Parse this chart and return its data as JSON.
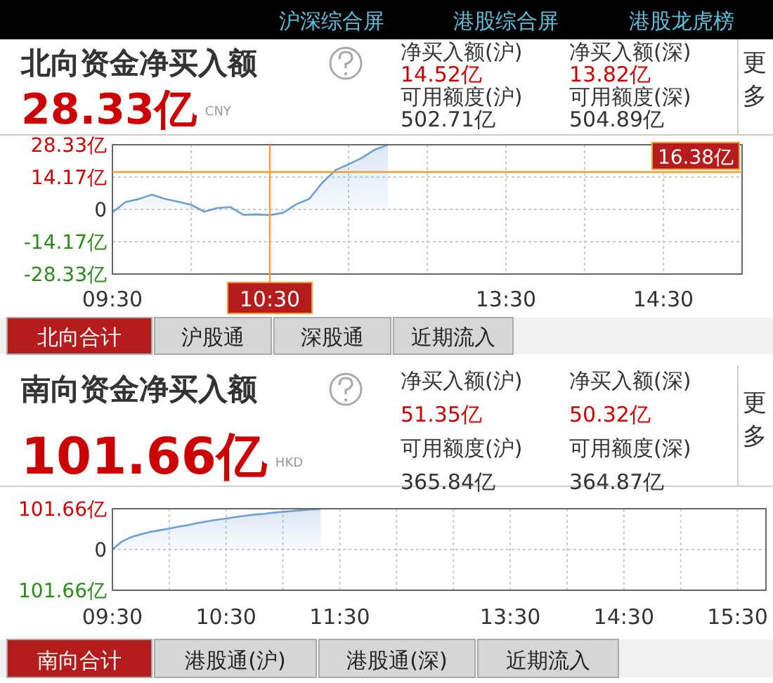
{
  "chart_data": [
    {
      "type": "area",
      "title": "北向资金净买入额",
      "subtitle": "28.33亿",
      "categories": [
        "09:30",
        null,
        null,
        null,
        null,
        null,
        null,
        null,
        null,
        null,
        null,
        null,
        "10:30",
        null,
        null,
        null,
        null,
        null,
        null,
        null,
        null,
        null,
        null,
        null,
        null,
        null,
        null,
        null,
        null,
        null,
        "13:30",
        null,
        null,
        null,
        null,
        null,
        null,
        null,
        null,
        null,
        null,
        null,
        "14:30",
        null,
        null,
        null,
        null,
        null,
        null
      ],
      "series": [
        {
          "color": "#6f9fd2",
          "values": [
            -1.3,
            3.2,
            4.5,
            6.5,
            4.6,
            3.4,
            2.0,
            -1.0,
            0.6,
            1.0,
            -2.4,
            -2.2,
            -2.5,
            -1.5,
            2.2,
            4.6,
            11.7,
            17.2,
            19.8,
            22.5,
            26.2,
            28.3,
            null,
            null,
            null,
            null,
            null,
            null,
            null,
            null,
            null,
            null,
            null,
            null,
            null,
            null,
            null,
            null,
            null,
            null,
            null,
            null,
            null,
            null,
            null,
            null,
            null,
            null,
            null
          ]
        }
      ],
      "ylim": [
        -28.33,
        28.33
      ],
      "yticks": [
        {
          "value": -28.33,
          "label": "-28.33亿"
        },
        {
          "value": -14.17,
          "label": "-14.17亿"
        },
        0,
        {
          "value": 14.17,
          "label": "14.17亿"
        },
        {
          "value": 28.33,
          "label": "28.33亿"
        }
      ],
      "grid": true,
      "ref_lines": [
        {
          "axis": "y",
          "value": 16.38,
          "label": "16.38亿",
          "color": "#f5a030"
        },
        {
          "axis": "x",
          "value": "10:30",
          "color": "#f5a030"
        }
      ],
      "annotations": [
        "沪深综合屏",
        "港股综合屏",
        "港股龙虎榜",
        "CNY",
        "净买入额(沪)",
        "14.52亿",
        "净买入额(深)",
        "13.82亿",
        "可用额度(沪)",
        "502.71亿",
        "可用额度(深)",
        "504.89亿",
        "更多",
        "北向合计",
        "沪股通",
        "深股通",
        "近期流入"
      ]
    },
    {
      "type": "area",
      "title": "南向资金净买入额",
      "subtitle": "101.66亿",
      "categories": [
        "09:30",
        null,
        null,
        null,
        null,
        null,
        null,
        null,
        null,
        null,
        null,
        null,
        "10:30",
        null,
        null,
        null,
        null,
        null,
        null,
        null,
        null,
        null,
        null,
        null,
        "11:30",
        null,
        null,
        null,
        null,
        null,
        null,
        null,
        null,
        null,
        null,
        null,
        null,
        null,
        null,
        null,
        null,
        null,
        "13:30",
        null,
        null,
        null,
        null,
        null,
        null,
        null,
        null,
        null,
        null,
        null,
        "14:30",
        null,
        null,
        null,
        null,
        null,
        null,
        null,
        null,
        null,
        null,
        null,
        "15:30",
        null,
        null,
        null
      ],
      "series": [
        {
          "color": "#6f9fd2",
          "values": [
            0,
            20,
            31,
            38,
            44,
            48,
            52,
            57,
            61,
            66,
            70,
            74,
            77,
            81,
            84,
            87,
            89,
            92,
            94,
            96,
            98,
            100,
            101,
            null,
            null,
            null,
            null,
            null,
            null,
            null,
            null,
            null,
            null,
            null,
            null,
            null,
            null,
            null,
            null,
            null,
            null,
            null,
            null,
            null,
            null,
            null,
            null,
            null,
            null,
            null,
            null,
            null,
            null,
            null,
            null,
            null,
            null,
            null,
            null,
            null,
            null,
            null,
            null,
            null,
            null,
            null,
            null,
            null,
            null,
            null
          ]
        }
      ],
      "ylim": [
        -101.66,
        101.66
      ],
      "yticks": [
        {
          "value": -101.66,
          "label": "101.66亿"
        },
        0,
        {
          "value": 101.66,
          "label": "101.66亿"
        }
      ],
      "grid": true,
      "annotations": [
        "HKD",
        "净买入额(沪)",
        "51.35亿",
        "净买入额(深)",
        "50.32亿",
        "可用额度(沪)",
        "365.84亿",
        "可用额度(深)",
        "364.87亿",
        "更多",
        "南向合计",
        "港股通(沪)",
        "港股通(深)",
        "近期流入"
      ]
    }
  ]
}
